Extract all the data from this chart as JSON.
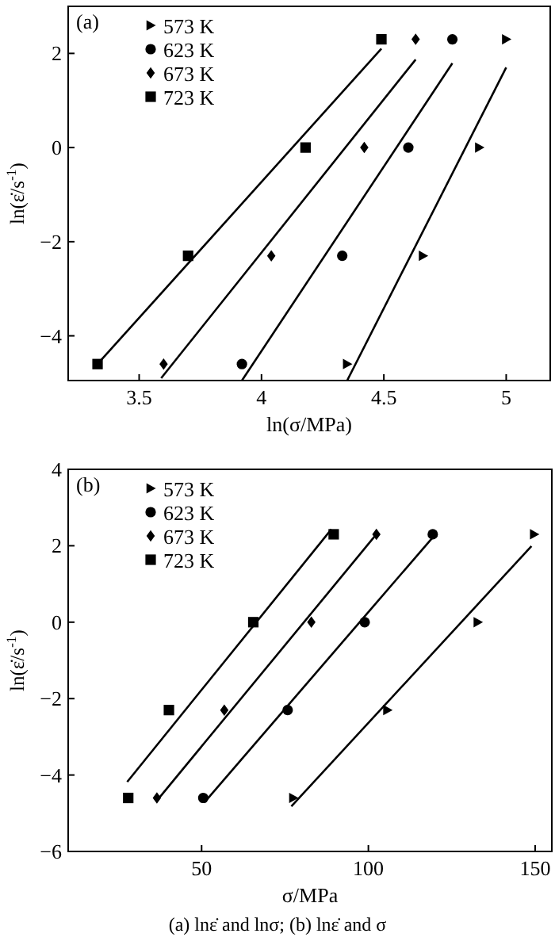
{
  "chart_data": [
    {
      "type": "scatter",
      "xlabel": "ln(σ/MPa)",
      "ylabel": "ln(ε̇/s$^{-1}$)",
      "xlim": [
        3.21,
        5.18
      ],
      "ylim": [
        -4.95,
        3.0
      ],
      "xticks": [
        3.5,
        4.0,
        4.5,
        5.0
      ],
      "yticks": [
        -4,
        -2,
        0,
        2
      ],
      "legend": "top left",
      "grid": false,
      "annotations": [
        "(a)"
      ],
      "series": [
        {
          "name": "573 K",
          "color": "#000000",
          "marker": "triangle",
          "x": [
            5.0,
            4.89,
            4.66,
            4.35
          ],
          "values": [
            2.3,
            0,
            -2.3,
            -4.6
          ]
        },
        {
          "name": "623 K",
          "color": "#000000",
          "marker": "circle",
          "x": [
            4.78,
            4.6,
            4.33,
            3.92
          ],
          "values": [
            2.3,
            0,
            -2.3,
            -4.6
          ]
        },
        {
          "name": "673 K",
          "color": "#000000",
          "marker": "diamond",
          "x": [
            4.63,
            4.42,
            4.04,
            3.6
          ],
          "values": [
            2.3,
            0,
            -2.3,
            -4.6
          ]
        },
        {
          "name": "723 K",
          "color": "#000000",
          "marker": "square",
          "x": [
            4.49,
            4.18,
            3.7,
            3.33
          ],
          "values": [
            2.3,
            0,
            -2.3,
            -4.6
          ]
        },
        {
          "type": "line",
          "color": "#000000",
          "marker": "none",
          "line_style": "solid",
          "x": [
            4.35,
            5.0
          ],
          "values": [
            -4.95,
            1.7
          ]
        },
        {
          "type": "line",
          "color": "#000000",
          "marker": "none",
          "line_style": "solid",
          "x": [
            3.92,
            4.78
          ],
          "values": [
            -4.95,
            1.79
          ]
        },
        {
          "type": "line",
          "color": "#000000",
          "marker": "none",
          "line_style": "solid",
          "x": [
            3.59,
            4.63
          ],
          "values": [
            -4.9,
            1.87
          ]
        },
        {
          "type": "line",
          "color": "#000000",
          "marker": "none",
          "line_style": "solid",
          "x": [
            3.33,
            4.49
          ],
          "values": [
            -4.6,
            2.1
          ]
        }
      ]
    },
    {
      "type": "scatter",
      "xlabel": "σ/MPa",
      "ylabel": "ln(ε̇/s$^{-1}$)",
      "xlim": [
        10,
        155
      ],
      "ylim": [
        -6,
        4
      ],
      "xticks": [
        50,
        100,
        150
      ],
      "yticks": [
        -6,
        -4,
        -2,
        0,
        2,
        4
      ],
      "legend": "top left",
      "grid": false,
      "annotations": [
        "(b)",
        "(a)  lnε̇  and  lnσ; (b)  lnε̇  and σ"
      ],
      "series": [
        {
          "name": "573 K",
          "color": "#000000",
          "marker": "triangle",
          "x": [
            149.7,
            132.8,
            105.7,
            77.5
          ],
          "values": [
            2.3,
            0,
            -2.3,
            -4.6
          ]
        },
        {
          "name": "623 K",
          "color": "#000000",
          "marker": "circle",
          "x": [
            119.3,
            98.9,
            75.8,
            50.5
          ],
          "values": [
            2.3,
            0,
            -2.3,
            -4.6
          ]
        },
        {
          "name": "673 K",
          "color": "#000000",
          "marker": "diamond",
          "x": [
            102.4,
            82.9,
            56.8,
            36.6
          ],
          "values": [
            2.3,
            0,
            -2.3,
            -4.6
          ]
        },
        {
          "name": "723 K",
          "color": "#000000",
          "marker": "square",
          "x": [
            89.6,
            65.5,
            40.2,
            28
          ],
          "values": [
            2.3,
            0,
            -2.3,
            -4.6
          ]
        },
        {
          "type": "line",
          "color": "#000000",
          "marker": "none",
          "line_style": "solid",
          "x": [
            76.9,
            148.9
          ],
          "values": [
            -4.82,
            1.99
          ]
        },
        {
          "type": "line",
          "color": "#000000",
          "marker": "none",
          "line_style": "solid",
          "x": [
            50.8,
            119.3
          ],
          "values": [
            -4.72,
            2.22
          ]
        },
        {
          "type": "line",
          "color": "#000000",
          "marker": "none",
          "line_style": "solid",
          "x": [
            36.6,
            102.4
          ],
          "values": [
            -4.67,
            2.3
          ]
        },
        {
          "type": "line",
          "color": "#000000",
          "marker": "none",
          "line_style": "solid",
          "x": [
            27.7,
            88.9
          ],
          "values": [
            -4.18,
            2.43
          ]
        }
      ]
    }
  ]
}
